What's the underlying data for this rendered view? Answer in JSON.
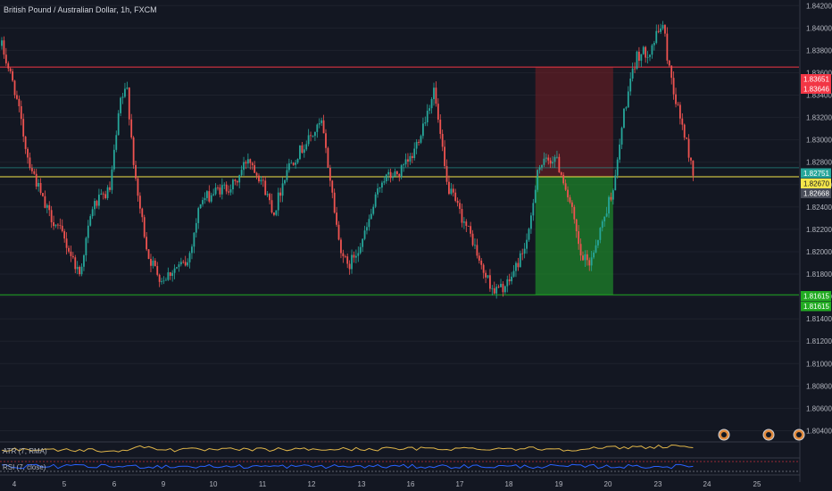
{
  "header": {
    "title": "British Pound / Australian Dollar, 1h, FXCM"
  },
  "colors": {
    "background": "#131722",
    "up": "#26a69a",
    "down": "#ef5350",
    "grid": "#1e222d",
    "resistance": "#f23645",
    "support": "#22ab22",
    "current": "#f5e64a",
    "atr": "#e0b64a",
    "rsi": "#2962ff"
  },
  "indicators": {
    "atr_label": "ATR (7, RMA)",
    "rsi_label": "RSI (7, close)"
  },
  "event_icons": [
    "event-icon",
    "event-icon",
    "event-icon"
  ],
  "chart_data": {
    "type": "candlestick",
    "ylim": [
      1.803,
      1.8425
    ],
    "yticks": [
      "1.84200",
      "1.84000",
      "1.83800",
      "1.83600",
      "1.83400",
      "1.83200",
      "1.83000",
      "1.82800",
      "1.82600",
      "1.82400",
      "1.82200",
      "1.82000",
      "1.81800",
      "1.81600",
      "1.81400",
      "1.81200",
      "1.81000",
      "1.80800",
      "1.80600",
      "1.80400"
    ],
    "xticks": [
      "4",
      "5",
      "6",
      "9",
      "10",
      "11",
      "12",
      "13",
      "16",
      "17",
      "18",
      "19",
      "20",
      "23",
      "24",
      "25"
    ],
    "price_labels": [
      {
        "text": "1.83651",
        "value": 1.83651,
        "color": "#f23645"
      },
      {
        "text": "1.83646",
        "value": 1.83646,
        "color": "#f23645"
      },
      {
        "text": "1.82751",
        "value": 1.82751,
        "color": "#26a69a"
      },
      {
        "text": "1.82670",
        "value": 1.8267,
        "color": "#f5e64a"
      },
      {
        "text": "1.82668",
        "value": 1.82668,
        "color": "#4a4e5a"
      },
      {
        "text": "1.81615",
        "value": 1.81615,
        "color": "#22ab22"
      },
      {
        "text": "1.81615",
        "value": 1.81615,
        "color": "#22ab22"
      }
    ],
    "levels": [
      {
        "name": "resistance",
        "value": 1.83651
      },
      {
        "name": "current",
        "value": 1.8267
      },
      {
        "name": "last-close",
        "value": 1.82751
      },
      {
        "name": "support",
        "value": 1.81615
      }
    ],
    "position": {
      "entry": 1.8267,
      "stop": 1.83651,
      "target": 1.81615,
      "start_index": 247,
      "end_index": 283
    },
    "candles_start": 1.8384,
    "path": [
      [
        0,
        1.8384
      ],
      [
        6,
        1.8345
      ],
      [
        12,
        1.8285
      ],
      [
        20,
        1.824
      ],
      [
        28,
        1.8215
      ],
      [
        36,
        1.818
      ],
      [
        42,
        1.824
      ],
      [
        50,
        1.8255
      ],
      [
        55,
        1.8335
      ],
      [
        58,
        1.8345
      ],
      [
        62,
        1.826
      ],
      [
        68,
        1.8195
      ],
      [
        74,
        1.8175
      ],
      [
        80,
        1.8185
      ],
      [
        86,
        1.819
      ],
      [
        92,
        1.8245
      ],
      [
        100,
        1.8255
      ],
      [
        108,
        1.826
      ],
      [
        114,
        1.8285
      ],
      [
        120,
        1.8265
      ],
      [
        126,
        1.8235
      ],
      [
        132,
        1.8275
      ],
      [
        138,
        1.829
      ],
      [
        144,
        1.8305
      ],
      [
        148,
        1.8315
      ],
      [
        152,
        1.8265
      ],
      [
        156,
        1.821
      ],
      [
        160,
        1.8185
      ],
      [
        168,
        1.8215
      ],
      [
        176,
        1.8265
      ],
      [
        184,
        1.827
      ],
      [
        190,
        1.8285
      ],
      [
        196,
        1.832
      ],
      [
        200,
        1.8345
      ],
      [
        206,
        1.826
      ],
      [
        212,
        1.8235
      ],
      [
        218,
        1.821
      ],
      [
        222,
        1.8185
      ],
      [
        228,
        1.8165
      ],
      [
        234,
        1.817
      ],
      [
        240,
        1.8195
      ],
      [
        244,
        1.8215
      ],
      [
        248,
        1.8275
      ],
      [
        256,
        1.8285
      ],
      [
        260,
        1.8265
      ],
      [
        264,
        1.8235
      ],
      [
        268,
        1.8195
      ],
      [
        272,
        1.819
      ],
      [
        278,
        1.8225
      ],
      [
        284,
        1.8265
      ],
      [
        288,
        1.8325
      ],
      [
        294,
        1.8375
      ],
      [
        300,
        1.838
      ],
      [
        306,
        1.8405
      ],
      [
        308,
        1.8375
      ],
      [
        312,
        1.8335
      ],
      [
        316,
        1.8305
      ],
      [
        320,
        1.827
      ]
    ],
    "atr_path": [
      [
        0,
        0.55
      ],
      [
        60,
        0.45
      ],
      [
        62,
        0.8
      ],
      [
        80,
        0.5
      ],
      [
        150,
        0.55
      ],
      [
        200,
        0.6
      ],
      [
        248,
        0.62
      ],
      [
        260,
        0.55
      ],
      [
        300,
        0.75
      ],
      [
        315,
        0.85
      ],
      [
        320,
        0.7
      ]
    ],
    "rsi_path": [
      [
        0,
        0.5
      ],
      [
        320,
        0.5
      ]
    ]
  }
}
